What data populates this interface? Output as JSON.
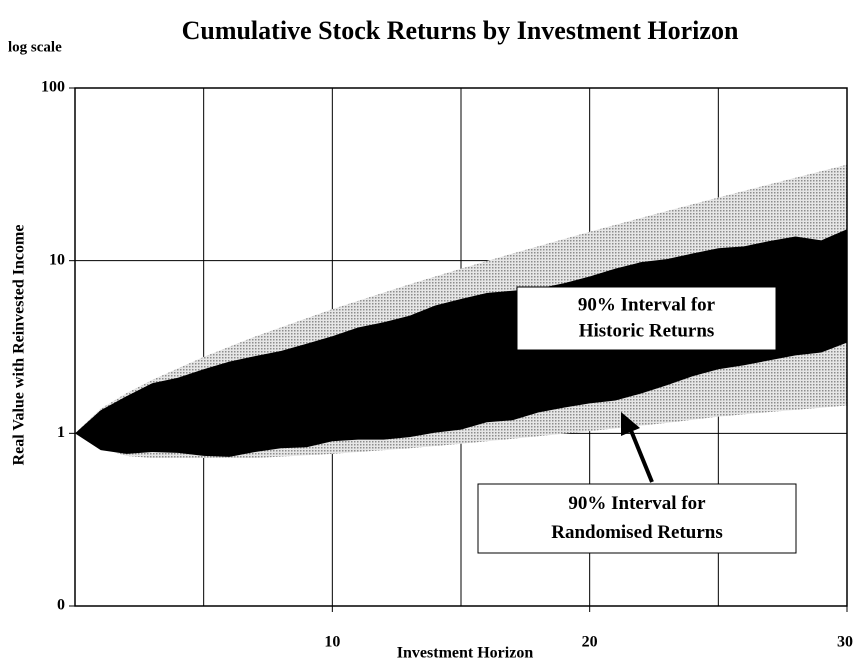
{
  "chart_data": {
    "type": "band",
    "title": "Cumulative Stock Returns by Investment Horizon",
    "scale_note": "log scale",
    "x_label": "Investment Horizon",
    "y_label": "Real Value with Reinvested Income",
    "log_y": true,
    "xlim": [
      0,
      30
    ],
    "xticks": [
      10,
      20,
      30
    ],
    "xgridlines": [
      5,
      10,
      15,
      20,
      25
    ],
    "ylim": [
      0.1,
      100
    ],
    "yticks": [
      {
        "value": 0.1,
        "label": "0"
      },
      1,
      10,
      100
    ],
    "grid": true,
    "series": [
      {
        "name_lines": [
          "90% Interval for",
          "Randomised Returns"
        ],
        "color": "#bdbdbd",
        "x": [
          0,
          1,
          2,
          3,
          5,
          7,
          10,
          13,
          15,
          17,
          20,
          23,
          25,
          27,
          30
        ],
        "upper": [
          1,
          1.39,
          1.71,
          2.04,
          2.77,
          3.64,
          5.24,
          7.3,
          9.0,
          11.0,
          14.7,
          19.4,
          23.2,
          27.7,
          36
        ],
        "lower": [
          1,
          0.82,
          0.74,
          0.72,
          0.72,
          0.72,
          0.76,
          0.82,
          0.87,
          0.93,
          1.03,
          1.15,
          1.25,
          1.33,
          1.45
        ]
      },
      {
        "name_lines": [
          "90% Interval for",
          "Historic Returns"
        ],
        "color": "#000000",
        "x": [
          0,
          1,
          2,
          3,
          4,
          5,
          6,
          7,
          8,
          9,
          10,
          11,
          12,
          13,
          14,
          15,
          16,
          17,
          18,
          19,
          20,
          21,
          22,
          23,
          24,
          25,
          26,
          27,
          28,
          29,
          30
        ],
        "upper": [
          1,
          1.36,
          1.64,
          1.95,
          2.1,
          2.35,
          2.6,
          2.8,
          3.0,
          3.3,
          3.65,
          4.1,
          4.4,
          4.8,
          5.5,
          6.0,
          6.5,
          6.7,
          6.9,
          7.4,
          8.1,
          9.0,
          9.8,
          10.2,
          11.0,
          11.8,
          12.1,
          13.0,
          13.8,
          13.1,
          15.2
        ],
        "lower": [
          1,
          0.8,
          0.76,
          0.78,
          0.77,
          0.74,
          0.73,
          0.78,
          0.82,
          0.83,
          0.9,
          0.92,
          0.92,
          0.95,
          1.01,
          1.05,
          1.16,
          1.19,
          1.32,
          1.41,
          1.49,
          1.55,
          1.7,
          1.9,
          2.14,
          2.35,
          2.48,
          2.65,
          2.83,
          2.94,
          3.35
        ]
      }
    ]
  }
}
